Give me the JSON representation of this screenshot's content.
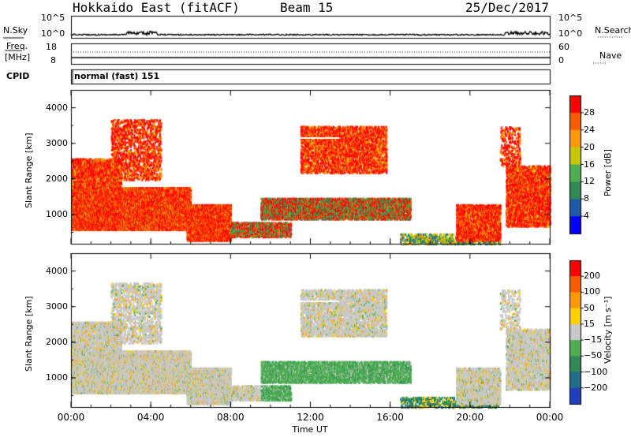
{
  "header": {
    "station": "Hokkaido East (fitACF)",
    "beam": "Beam 15",
    "date": "25/Dec/2017"
  },
  "sky_panel": {
    "left_label": "N.Sky",
    "right_label": "N.Search",
    "tick_top": "10^5",
    "tick_bottom": "10^0"
  },
  "freq_panel": {
    "left_label_1": "Freq.",
    "left_label_2": "[MHz]",
    "tick_top": "18",
    "tick_bottom": "8",
    "right_tick_top": "60",
    "right_tick_bottom": "0",
    "right_label": "Nave"
  },
  "cpid_panel": {
    "label": "CPID",
    "text": "normal (fast) 151"
  },
  "chart_data": [
    {
      "type": "heatmap",
      "name": "power",
      "ylabel": "Slant Range [km]",
      "xlabel": "Time UT",
      "xlim": [
        0,
        24
      ],
      "ylim": [
        180,
        4500
      ],
      "yticks": [
        "1000",
        "2000",
        "3000",
        "4000"
      ],
      "xticks": [
        "00:00",
        "04:00",
        "08:00",
        "12:00",
        "16:00",
        "20:00",
        "00:00"
      ],
      "colorbar": {
        "label": "Power [dB]",
        "ticks": [
          "4",
          "8",
          "12",
          "16",
          "20",
          "24",
          "28"
        ],
        "colors": [
          "#0000ff",
          "#1f5aa8",
          "#2e8b57",
          "#4caf50",
          "#c8c800",
          "#ff9900",
          "#ff5a00",
          "#ff0000"
        ]
      }
    },
    {
      "type": "heatmap",
      "name": "velocity",
      "ylabel": "Slant Range [km]",
      "xlabel": "Time UT",
      "xlim": [
        0,
        24
      ],
      "ylim": [
        180,
        4500
      ],
      "yticks": [
        "1000",
        "2000",
        "3000",
        "4000"
      ],
      "xticks": [
        "00:00",
        "04:00",
        "08:00",
        "12:00",
        "16:00",
        "20:00",
        "00:00"
      ],
      "colorbar": {
        "label": "Velocity [m s⁻¹]",
        "ticks": [
          "200",
          "100",
          "50",
          "15",
          "−15",
          "−50",
          "−100",
          "−200"
        ],
        "colors": [
          "#1f3fbf",
          "#1f6e8c",
          "#2e8b57",
          "#4caf50",
          "#c8c8c8",
          "#ffd000",
          "#ff9900",
          "#ff5a00",
          "#ff0000"
        ]
      }
    }
  ]
}
